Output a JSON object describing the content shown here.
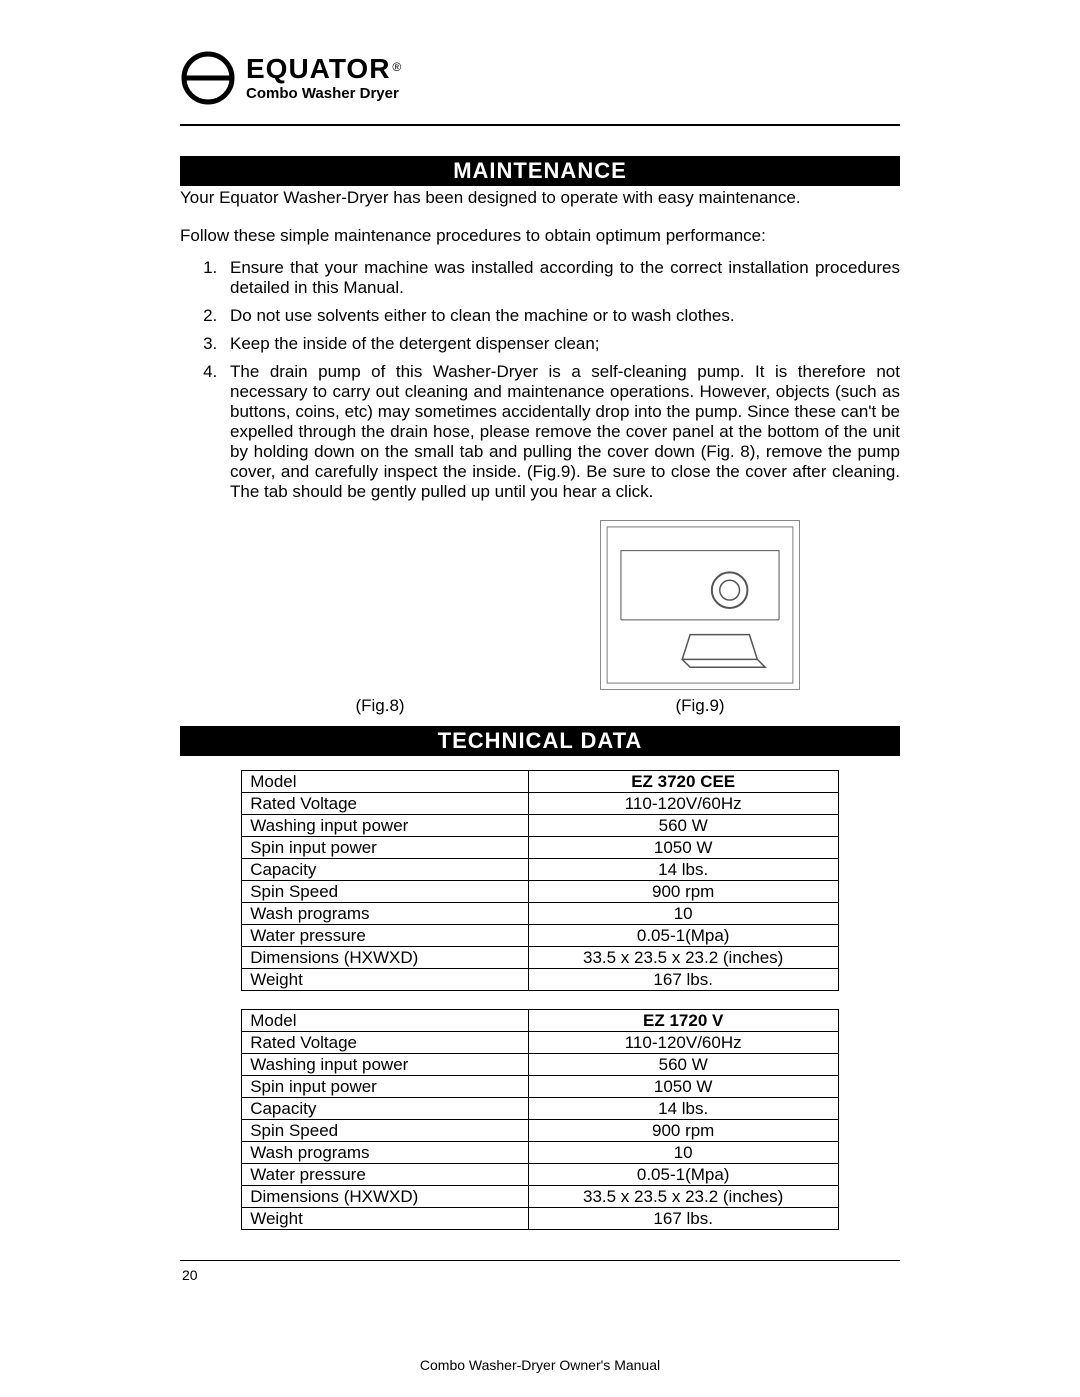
{
  "logo": {
    "brand": "EQUATOR",
    "registered": "®",
    "subline": "Combo Washer Dryer"
  },
  "sections": {
    "maintenance": {
      "title": "MAINTENANCE",
      "intro": "Your Equator Washer-Dryer has been designed to operate with easy maintenance.",
      "follow": "Follow these simple maintenance procedures to obtain optimum performance:",
      "items": [
        "Ensure that your machine was installed according to the correct installation procedures detailed in this Manual.",
        "Do not use solvents either to clean the machine or to wash clothes.",
        "Keep the inside of the detergent dispenser clean;",
        "The drain pump of this Washer-Dryer is a self-cleaning pump. It is therefore not necessary to carry out cleaning and maintenance operations. However, objects (such as buttons, coins, etc) may sometimes accidentally drop into the pump. Since these can't be expelled through the drain hose, please remove the cover panel at the bottom of the unit by holding down on the small tab and pulling the cover down (Fig. 8), remove the pump cover, and carefully inspect the inside. (Fig.9).   Be sure to close the cover after cleaning. The tab should be gently pulled up until you hear a click."
      ],
      "figs": {
        "left": "(Fig.8)",
        "right": "(Fig.9)"
      }
    },
    "technical": {
      "title": "TECHNICAL DATA",
      "tables": [
        {
          "rows": [
            {
              "label": "Model",
              "value": "EZ 3720 CEE",
              "is_model": true
            },
            {
              "label": "Rated Voltage",
              "value": "110-120V/60Hz"
            },
            {
              "label": "Washing input power",
              "value": "560 W"
            },
            {
              "label": "Spin input power",
              "value": "1050 W"
            },
            {
              "label": "Capacity",
              "value": "14 lbs."
            },
            {
              "label": "Spin Speed",
              "value": "900 rpm"
            },
            {
              "label": "Wash programs",
              "value": "10"
            },
            {
              "label": "Water pressure",
              "value": "0.05-1(Mpa)"
            },
            {
              "label": "Dimensions (HXWXD)",
              "value": "33.5 x 23.5 x 23.2 (inches)"
            },
            {
              "label": "Weight",
              "value": "167 lbs."
            }
          ]
        },
        {
          "rows": [
            {
              "label": "Model",
              "value": "EZ 1720 V",
              "is_model": true
            },
            {
              "label": "Rated Voltage",
              "value": "110-120V/60Hz"
            },
            {
              "label": "Washing input power",
              "value": "560 W"
            },
            {
              "label": "Spin input power",
              "value": "1050 W"
            },
            {
              "label": "Capacity",
              "value": "14 lbs."
            },
            {
              "label": "Spin Speed",
              "value": "900 rpm"
            },
            {
              "label": "Wash programs",
              "value": "10"
            },
            {
              "label": "Water pressure",
              "value": "0.05-1(Mpa)"
            },
            {
              "label": "Dimensions (HXWXD)",
              "value": "33.5 x 23.5 x 23.2 (inches)"
            },
            {
              "label": "Weight",
              "value": "167 lbs."
            }
          ]
        }
      ]
    }
  },
  "footer": {
    "page_number": "20",
    "title": "Combo Washer-Dryer Owner's Manual"
  },
  "styling": {
    "page_bg": "#ffffff",
    "text_color": "#000000",
    "header_bg": "#000000",
    "header_fg": "#ffffff",
    "rule_color": "#000000",
    "table_border": "#000000",
    "body_fontsize_pt": 12,
    "header_fontsize_pt": 16,
    "font_family": "Arial"
  }
}
